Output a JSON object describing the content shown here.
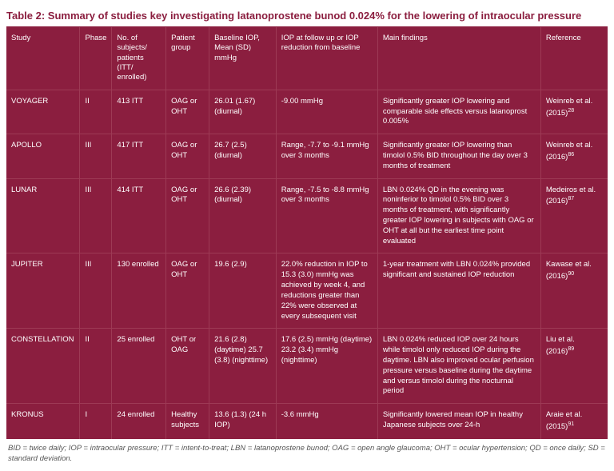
{
  "title": "Table 2: Summary of studies key investigating latanoprostene bunod 0.024% for the lowering of intraocular pressure",
  "columns": {
    "study": "Study",
    "phase": "Phase",
    "subjects": "No. of subjects/ patients (ITT/ enrolled)",
    "group": "Patient group",
    "baseline": "Baseline IOP, Mean (SD) mmHg",
    "followup": "IOP at follow up or IOP reduction from baseline",
    "findings": "Main findings",
    "reference": "Reference"
  },
  "rows": [
    {
      "study": "VOYAGER",
      "phase": "II",
      "subjects": "413 ITT",
      "group": "OAG or OHT",
      "baseline": "26.01 (1.67) (diurnal)",
      "followup": "-9.00 mmHg",
      "findings": "Significantly greater IOP lowering and comparable side effects versus latanoprost 0.005%",
      "reference": "Weinreb et al. (2015)",
      "refsup": "28"
    },
    {
      "study": "APOLLO",
      "phase": "III",
      "subjects": "417 ITT",
      "group": "OAG or OHT",
      "baseline": "26.7 (2.5) (diurnal)",
      "followup": "Range, -7.7 to -9.1 mmHg over 3 months",
      "findings": "Significantly greater IOP lowering than timolol 0.5% BID throughout the day over 3 months of treatment",
      "reference": "Weinreb et al. (2016)",
      "refsup": "86"
    },
    {
      "study": "LUNAR",
      "phase": "III",
      "subjects": "414 ITT",
      "group": "OAG or OHT",
      "baseline": "26.6 (2.39) (diurnal)",
      "followup": "Range, -7.5 to -8.8 mmHg over 3 months",
      "findings": "LBN 0.024% QD in the evening was noninferior to timolol 0.5% BID over 3 months of treatment, with significantly greater IOP lowering in subjects with OAG or OHT at all but the earliest time point evaluated",
      "reference": "Medeiros et al. (2016)",
      "refsup": "87"
    },
    {
      "study": "JUPITER",
      "phase": "III",
      "subjects": "130 enrolled",
      "group": "OAG or OHT",
      "baseline": "19.6 (2.9)",
      "followup": "22.0% reduction in IOP to 15.3 (3.0) mmHg was achieved by week 4, and reductions greater than 22% were observed at every subsequent visit",
      "findings": "1-year treatment with LBN 0.024% provided significant and sustained IOP reduction",
      "reference": "Kawase et al. (2016)",
      "refsup": "90"
    },
    {
      "study": "CONSTELLATION",
      "phase": "II",
      "subjects": "25 enrolled",
      "group": "OHT or OAG",
      "baseline": "21.6 (2.8) (daytime) 25.7 (3.8) (nighttime)",
      "followup": "17.6 (2.5) mmHg (daytime) 23.2 (3.4) mmHg (nighttime)",
      "findings": "LBN 0.024% reduced IOP over 24 hours while timolol only reduced IOP during the daytime. LBN also improved ocular perfusion pressure versus baseline during the daytime and versus timolol during the nocturnal period",
      "reference": "Liu et al. (2016)",
      "refsup": "89"
    },
    {
      "study": "KRONUS",
      "phase": "I",
      "subjects": "24 enrolled",
      "group": "Healthy subjects",
      "baseline": "13.6 (1.3) (24 h IOP)",
      "followup": "-3.6 mmHg",
      "findings": "Significantly lowered mean IOP in healthy Japanese subjects over 24-h",
      "reference": "Araie et al. (2015)",
      "refsup": "91"
    }
  ],
  "footnote": "BID = twice daily; IOP = intraocular pressure; ITT = intent-to-treat; LBN = latanoprostene bunod; OAG = open angle glaucoma; OHT = ocular hypertension; QD = once daily; SD = standard deviation.",
  "colors": {
    "brand": "#8b1e3f",
    "rowDivider": "#9d3a55",
    "footText": "#555555",
    "bg": "#ffffff"
  }
}
